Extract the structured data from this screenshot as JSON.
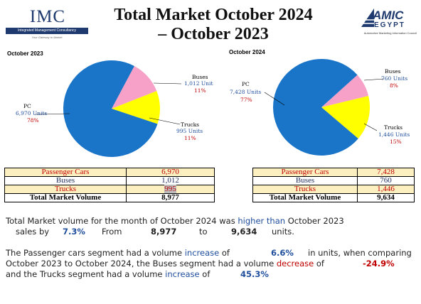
{
  "header": {
    "imc_logo": {
      "text": "IMC",
      "bar": "Integrated Management Consultancy",
      "tagline": "Your Gateway to Market"
    },
    "title_line1": "Total Market October 2024",
    "title_line2": "– October 2023",
    "amic_logo": {
      "name": "AMIC",
      "sub": "EGYPT",
      "desc": "Automotive Marketing Information Council"
    }
  },
  "chart_data": [
    {
      "type": "pie",
      "title": "October 2023",
      "slices": [
        {
          "name": "PC",
          "value": 6970,
          "units": "6,970 Units",
          "percent": "78%",
          "color": "#1a75c8"
        },
        {
          "name": "Buses",
          "value": 1012,
          "units": "1,012  Units",
          "percent": "11%",
          "color": "#f7a1c8"
        },
        {
          "name": "Trucks",
          "value": 995,
          "units": "995 Units",
          "percent": "11%",
          "color": "#ffff00"
        }
      ]
    },
    {
      "type": "pie",
      "title": "October 2024",
      "slices": [
        {
          "name": "PC",
          "value": 7428,
          "units": "7,428 Units",
          "percent": "77%",
          "color": "#1a75c8"
        },
        {
          "name": "Buses",
          "value": 760,
          "units": "760  Units",
          "percent": "8%",
          "color": "#f7a1c8"
        },
        {
          "name": "Trucks",
          "value": 1446,
          "units": "1,446  Units",
          "percent": "15%",
          "color": "#ffff00"
        }
      ]
    }
  ],
  "tables": {
    "oct2023": {
      "rows": [
        {
          "label": "Passenger Cars",
          "value": "6,970"
        },
        {
          "label": "Buses",
          "value": "1,012"
        },
        {
          "label": "Trucks",
          "value": "995"
        }
      ],
      "total_label": "Total Market Volume",
      "total_value": "8,977"
    },
    "oct2024": {
      "rows": [
        {
          "label": "Passenger Cars",
          "value": "7,428"
        },
        {
          "label": "Buses",
          "value": "760"
        },
        {
          "label": "Trucks",
          "value": "1,446"
        }
      ],
      "total_label": "Total Market Volume",
      "total_value": "9,634"
    }
  },
  "summary": {
    "p1_a": "Total Market volume for the month of October 2024 was",
    "p1_dir": "higher than",
    "p1_b": "October 2023",
    "p1_c": "sales by",
    "p1_pct": "7.3%",
    "p1_from": "From",
    "p1_v1": "8,977",
    "p1_to": "to",
    "p1_v2": "9,634",
    "p1_units": "units.",
    "p2_a": "The Passenger cars segment had a volume",
    "p2_inc": "increase",
    "p2_of": "of",
    "p2_pc_pct": "6.6%",
    "p2_b": "in units, when comparing",
    "p2_c": "October 2023 to October 2024, the Buses segment had a volume",
    "p2_dec": "decrease",
    "p2_of2": "of",
    "p2_bus_pct": "-24.9%",
    "p2_d": "and the Trucks segment had a volume",
    "p2_inc2": "increase",
    "p2_of3": "of",
    "p2_trk_pct": "45.3%"
  }
}
